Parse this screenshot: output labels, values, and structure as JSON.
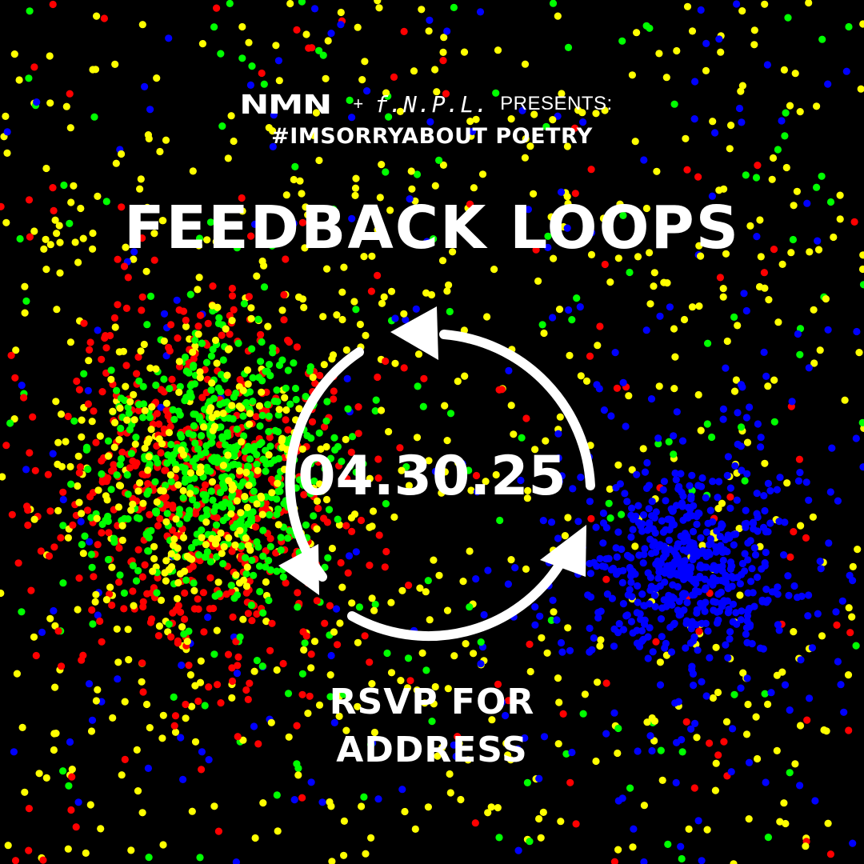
{
  "colors": {
    "background": "#000000",
    "text": "#ffffff",
    "dot_red": "#ff0000",
    "dot_green": "#00ff00",
    "dot_blue": "#0000ff",
    "dot_yellow": "#ffff00"
  },
  "header": {
    "logo_nmn": "NMN",
    "plus": "+",
    "logo_fnpl": "f.N.P.L.",
    "presents": "PRESENTS:",
    "series": "#IMSORRYABOUT POETRY"
  },
  "event": {
    "title": "FEEDBACK LOOPS",
    "date": "04.30.25",
    "rsvp_line_1": "RSVP FOR",
    "rsvp_line_2": "ADDRESS"
  },
  "graphic": {
    "arrow_icon": "cycle-arrows-icon"
  }
}
